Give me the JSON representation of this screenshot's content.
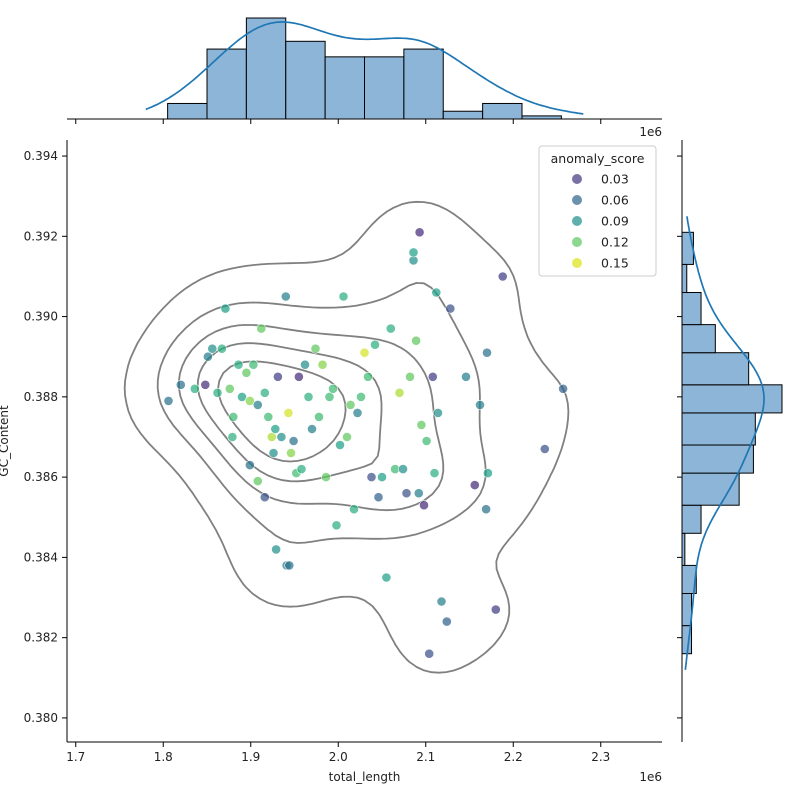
{
  "chart_data": {
    "type": "scatter",
    "subtype": "jointplot with marginal histograms, KDE curves and KDE contour lines",
    "xlabel": "total_length",
    "ylabel": "GC_Content",
    "x_scale_note": "1e6",
    "xlim": [
      1690000,
      2370000
    ],
    "ylim": [
      0.3794,
      0.3944
    ],
    "xticks": [
      1700000,
      1800000,
      1900000,
      2000000,
      2100000,
      2200000,
      2300000
    ],
    "xtick_labels": [
      "1.7",
      "1.8",
      "1.9",
      "2.0",
      "2.1",
      "2.2",
      "2.3"
    ],
    "yticks": [
      0.38,
      0.382,
      0.384,
      0.386,
      0.388,
      0.39,
      0.392,
      0.394
    ],
    "ytick_labels": [
      "0.380",
      "0.382",
      "0.384",
      "0.386",
      "0.388",
      "0.390",
      "0.392",
      "0.394"
    ],
    "grid": false,
    "legend": {
      "title": "anomaly_score",
      "placement": "top-right",
      "entries": [
        {
          "label": "0.03",
          "color": "#443a83"
        },
        {
          "label": "0.06",
          "color": "#31688e"
        },
        {
          "label": "0.09",
          "color": "#21918c"
        },
        {
          "label": "0.12",
          "color": "#5ec962"
        },
        {
          "label": "0.15",
          "color": "#dde318"
        }
      ]
    },
    "colormap": "viridis",
    "points": [
      [
        1806000,
        0.3879,
        0.06
      ],
      [
        1820000,
        0.3883,
        0.06
      ],
      [
        1836000,
        0.3882,
        0.1
      ],
      [
        1848000,
        0.3883,
        0.02
      ],
      [
        1851000,
        0.389,
        0.07
      ],
      [
        1856000,
        0.3892,
        0.08
      ],
      [
        1862000,
        0.3881,
        0.1
      ],
      [
        1867000,
        0.3892,
        0.1
      ],
      [
        1871000,
        0.3902,
        0.09
      ],
      [
        1876000,
        0.3882,
        0.12
      ],
      [
        1880000,
        0.3875,
        0.11
      ],
      [
        1886000,
        0.3888,
        0.1
      ],
      [
        1890000,
        0.388,
        0.09
      ],
      [
        1895000,
        0.3886,
        0.12
      ],
      [
        1899000,
        0.3879,
        0.13
      ],
      [
        1903000,
        0.3888,
        0.11
      ],
      [
        1908000,
        0.3878,
        0.07
      ],
      [
        1912000,
        0.3897,
        0.12
      ],
      [
        1916000,
        0.3881,
        0.1
      ],
      [
        1920000,
        0.3875,
        0.11
      ],
      [
        1924000,
        0.387,
        0.14
      ],
      [
        1928000,
        0.3872,
        0.09
      ],
      [
        1931000,
        0.3885,
        0.03
      ],
      [
        1935000,
        0.387,
        0.08
      ],
      [
        1940000,
        0.3905,
        0.07
      ],
      [
        1943000,
        0.3876,
        0.15
      ],
      [
        1946000,
        0.3866,
        0.13
      ],
      [
        1949000,
        0.3869,
        0.06
      ],
      [
        1952000,
        0.3861,
        0.11
      ],
      [
        1955000,
        0.3885,
        0.02
      ],
      [
        1958000,
        0.3862,
        0.1
      ],
      [
        1962000,
        0.3888,
        0.08
      ],
      [
        1966000,
        0.388,
        0.1
      ],
      [
        1970000,
        0.3872,
        0.07
      ],
      [
        1974000,
        0.3892,
        0.12
      ],
      [
        1978000,
        0.3875,
        0.11
      ],
      [
        1982000,
        0.3888,
        0.13
      ],
      [
        1986000,
        0.386,
        0.12
      ],
      [
        1990000,
        0.388,
        0.11
      ],
      [
        1994000,
        0.3882,
        0.11
      ],
      [
        1998000,
        0.3848,
        0.1
      ],
      [
        2002000,
        0.3868,
        0.09
      ],
      [
        2006000,
        0.3905,
        0.1
      ],
      [
        2010000,
        0.387,
        0.12
      ],
      [
        2014000,
        0.3878,
        0.12
      ],
      [
        2018000,
        0.3852,
        0.1
      ],
      [
        2022000,
        0.3876,
        0.07
      ],
      [
        2026000,
        0.388,
        0.11
      ],
      [
        2030000,
        0.3891,
        0.15
      ],
      [
        2034000,
        0.3885,
        0.11
      ],
      [
        2038000,
        0.386,
        0.04
      ],
      [
        2042000,
        0.3893,
        0.1
      ],
      [
        2046000,
        0.3855,
        0.05
      ],
      [
        2050000,
        0.386,
        0.09
      ],
      [
        2055000,
        0.3835,
        0.09
      ],
      [
        2060000,
        0.3897,
        0.1
      ],
      [
        2065000,
        0.3862,
        0.11
      ],
      [
        2070000,
        0.3881,
        0.14
      ],
      [
        2074000,
        0.3862,
        0.08
      ],
      [
        2078000,
        0.3856,
        0.04
      ],
      [
        2082000,
        0.3885,
        0.12
      ],
      [
        2086000,
        0.3914,
        0.08
      ],
      [
        2089000,
        0.3894,
        0.12
      ],
      [
        2092000,
        0.3856,
        0.07
      ],
      [
        2095000,
        0.3873,
        0.12
      ],
      [
        2098000,
        0.3853,
        0.02
      ],
      [
        2101000,
        0.3869,
        0.11
      ],
      [
        2104000,
        0.3816,
        0.04
      ],
      [
        2108000,
        0.3885,
        0.03
      ],
      [
        2110000,
        0.3861,
        0.1
      ],
      [
        2112000,
        0.3906,
        0.09
      ],
      [
        2114000,
        0.3876,
        0.08
      ],
      [
        2118000,
        0.3829,
        0.07
      ],
      [
        2124000,
        0.3824,
        0.05
      ],
      [
        2128000,
        0.3902,
        0.04
      ],
      [
        2146000,
        0.3885,
        0.07
      ],
      [
        2156000,
        0.3858,
        0.02
      ],
      [
        2162000,
        0.3878,
        0.07
      ],
      [
        2169000,
        0.3852,
        0.06
      ],
      [
        2170000,
        0.3891,
        0.06
      ],
      [
        2171000,
        0.3861,
        0.09
      ],
      [
        2180000,
        0.3827,
        0.03
      ],
      [
        2188000,
        0.391,
        0.03
      ],
      [
        2236000,
        0.3867,
        0.04
      ],
      [
        2257000,
        0.3882,
        0.05
      ],
      [
        2093000,
        0.3921,
        0.02
      ],
      [
        2086000,
        0.3916,
        0.09
      ],
      [
        1941000,
        0.3838,
        0.07
      ],
      [
        1929000,
        0.3842,
        0.08
      ],
      [
        1944000,
        0.3838,
        0.06
      ],
      [
        1926000,
        0.3866,
        0.08
      ],
      [
        1908000,
        0.3859,
        0.12
      ],
      [
        1916000,
        0.3855,
        0.04
      ],
      [
        1899000,
        0.3863,
        0.06
      ],
      [
        1879000,
        0.387,
        0.1
      ]
    ],
    "kde_contour_levels": 5,
    "top_histogram": {
      "bin_edges": [
        1805000,
        1850000,
        1895000,
        1940000,
        1985000,
        2030000,
        2075000,
        2120000,
        2165000,
        2210000,
        2255000
      ],
      "counts": [
        2,
        9,
        13,
        10,
        8,
        8,
        9,
        1,
        2,
        0.4
      ]
    },
    "right_histogram": {
      "bin_edges": [
        0.3816,
        0.3823,
        0.3831,
        0.3838,
        0.3846,
        0.3853,
        0.3861,
        0.3868,
        0.3876,
        0.3883,
        0.3891,
        0.3898,
        0.3906,
        0.3913,
        0.3921
      ],
      "counts": [
        1,
        1,
        1.5,
        0.3,
        2,
        6,
        7.5,
        7.7,
        10.5,
        7,
        3.5,
        2,
        0.5,
        1.2
      ]
    }
  }
}
